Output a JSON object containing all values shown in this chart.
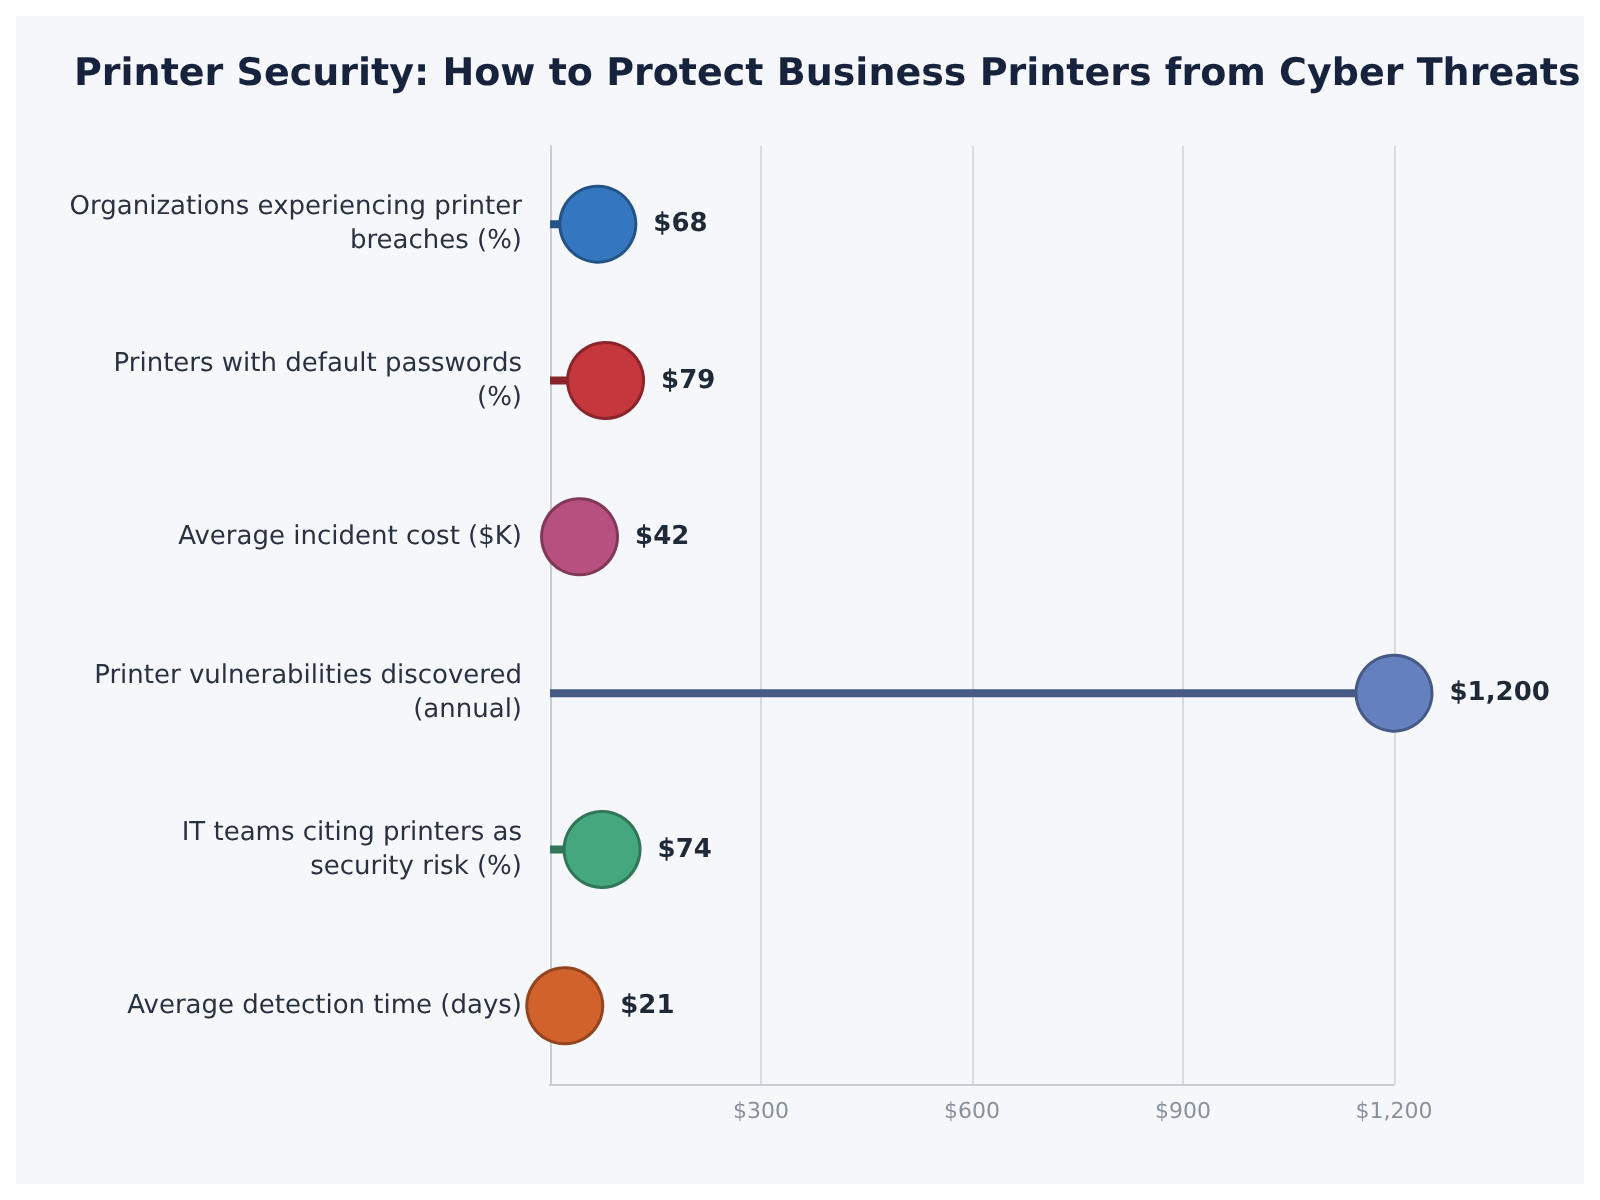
{
  "chart_data": {
    "type": "lollipop",
    "title": "Printer Security: How to Protect Business Printers from Cyber Threats",
    "orientation": "horizontal",
    "categories": [
      "Organizations experiencing printer breaches (%)",
      "Printers with default passwords (%)",
      "Average incident cost ($K)",
      "Printer vulnerabilities discovered (annual)",
      "IT teams citing printers as security risk (%)",
      "Average detection time (days)"
    ],
    "values": [
      68,
      79,
      42,
      1200,
      74,
      21
    ],
    "value_labels": [
      "$68",
      "$79",
      "$42",
      "$1,200",
      "$74",
      "$21"
    ],
    "colors": [
      "#3477c0",
      "#c5363d",
      "#b8507f",
      "#6580bf",
      "#45a87c",
      "#d2622c"
    ],
    "xlim": [
      0,
      1200
    ],
    "xticks": [
      {
        "value": 300,
        "label": "$300"
      },
      {
        "value": 600,
        "label": "$600"
      },
      {
        "value": 900,
        "label": "$900"
      },
      {
        "value": 1200,
        "label": "$1,200"
      }
    ],
    "grid": "x",
    "marker": "circle"
  }
}
